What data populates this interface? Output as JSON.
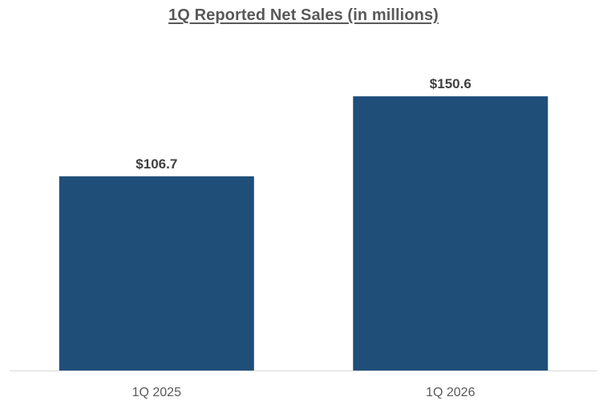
{
  "chart_data": {
    "type": "bar",
    "title": "1Q Reported Net Sales (in millions)",
    "categories": [
      "1Q 2025",
      "1Q 2026"
    ],
    "values": [
      106.7,
      150.6
    ],
    "data_labels": [
      "$106.7",
      "$150.6"
    ],
    "xlabel": "",
    "ylabel": "",
    "ylim": [
      0,
      170
    ],
    "grid": false,
    "legend": "none",
    "bar_color": "#1f4e79",
    "axis_color": "#d9d9d9"
  }
}
